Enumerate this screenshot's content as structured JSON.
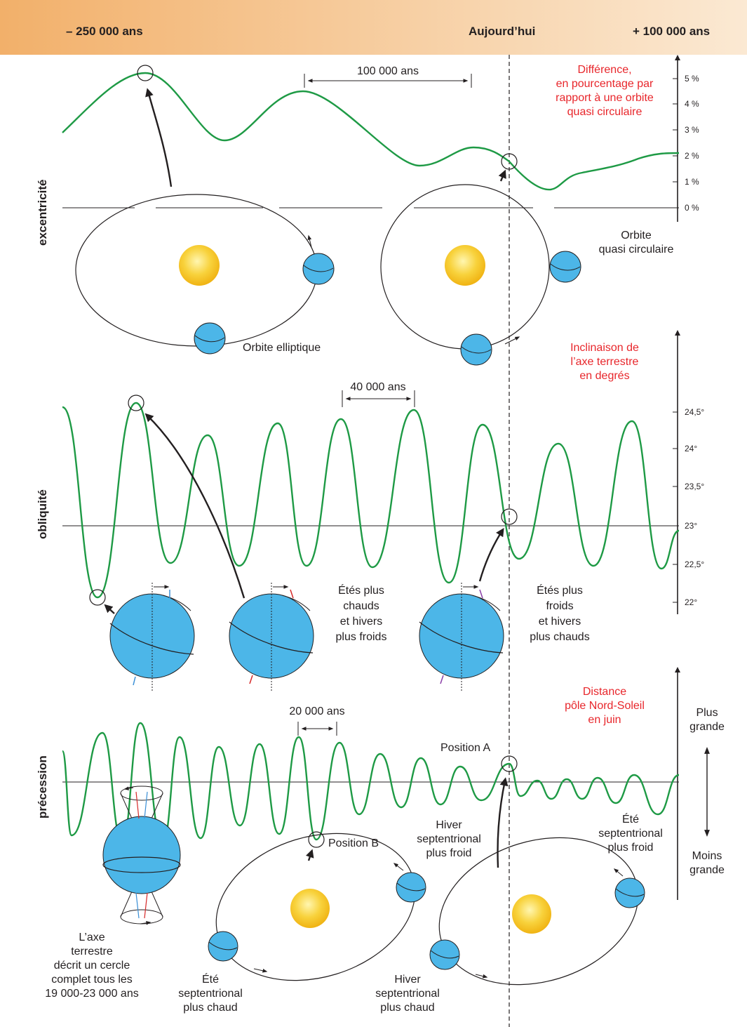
{
  "header": {
    "left": "– 250 000 ans",
    "center": "Aujourd’hui",
    "right": "+ 100 000 ans"
  },
  "colors": {
    "curve": "#1e9a45",
    "planet": "#4cb6e8",
    "sun": "#f6c11c",
    "annotation": "#e8262b",
    "header_bg_start": "#f2b06a",
    "header_bg_end": "#fbe9d3"
  },
  "eccentricity": {
    "side_label": "excentricité",
    "axis_title": [
      "Différence,",
      "en pourcentage par",
      "rapport à une orbite",
      "quasi circulaire"
    ],
    "ticks": [
      "5 %",
      "4 %",
      "3 %",
      "2 %",
      "1 %",
      "0 %"
    ],
    "period": "100 000 ans",
    "orbit_elliptic": "Orbite elliptique",
    "orbit_circular": [
      "Orbite",
      "quasi circulaire"
    ]
  },
  "obliquity": {
    "side_label": "obliquité",
    "axis_title": [
      "Inclinaison de",
      "l’axe terrestre",
      "en degrés"
    ],
    "ticks": [
      "24,5°",
      "24°",
      "23,5°",
      "23°",
      "22,5°",
      "22°"
    ],
    "period": "40 000 ans",
    "warm_summers": [
      "Étés plus",
      "chauds",
      "et hivers",
      "plus froids"
    ],
    "cool_summers": [
      "Étés plus",
      "froids",
      "et hivers",
      "plus chauds"
    ]
  },
  "precession": {
    "side_label": "précession",
    "axis_title": [
      "Distance",
      "pôle Nord-Soleil",
      "en juin"
    ],
    "axis_top": [
      "Plus",
      "grande"
    ],
    "axis_bottom": [
      "Moins",
      "grande"
    ],
    "period": "20 000 ans",
    "position_a": "Position A",
    "position_b": "Position B",
    "axis_circle": [
      "L’axe",
      "terrestre",
      "décrit un cercle",
      "complet tous les",
      "19 000-23 000 ans"
    ],
    "summer_warm": [
      "Été",
      "septentrional",
      "plus chaud"
    ],
    "winter_cold": [
      "Hiver",
      "septentrional",
      "plus froid"
    ],
    "winter_warm": [
      "Hiver",
      "septentrional",
      "plus chaud"
    ],
    "summer_cold": [
      "Été",
      "septentrional",
      "plus froid"
    ]
  }
}
